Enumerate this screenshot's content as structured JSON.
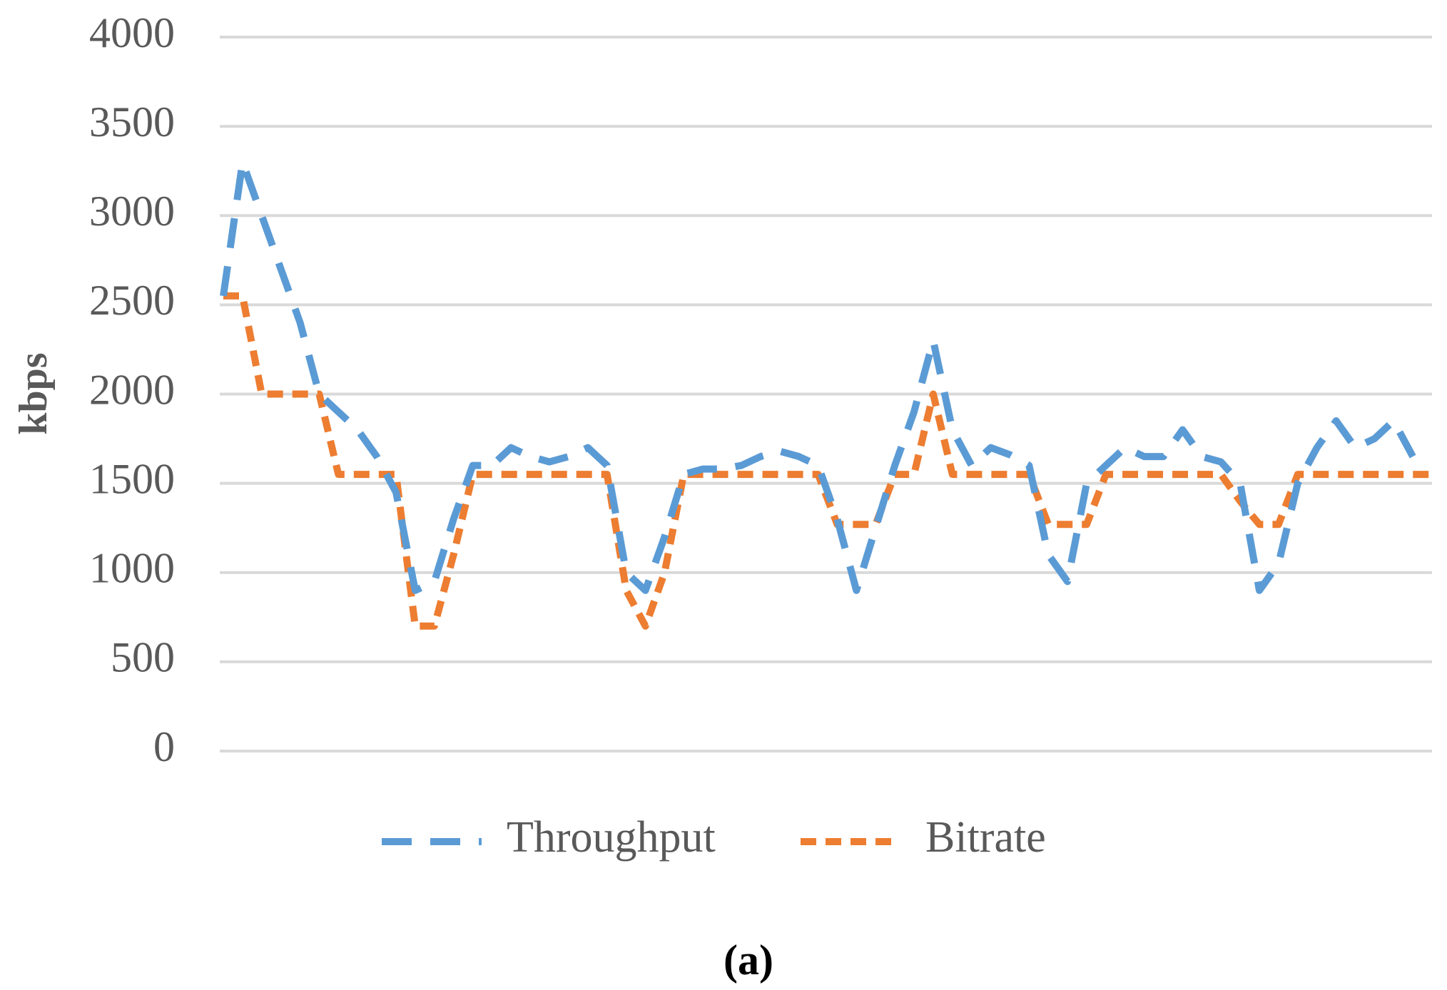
{
  "chart_data": {
    "type": "line",
    "ylabel": "kbps",
    "caption": "(a)",
    "ylim": [
      0,
      4000
    ],
    "yticks": [
      0,
      500,
      1000,
      1500,
      2000,
      2500,
      3000,
      3500,
      4000
    ],
    "grid": true,
    "legend": "bottom",
    "series": [
      {
        "name": "Throughput",
        "color": "#5b9bd5",
        "dash": "long",
        "values": [
          2550,
          3300,
          3000,
          2700,
          2400,
          2000,
          1900,
          1800,
          1650,
          1450,
          900,
          950,
          1300,
          1600,
          1600,
          1700,
          1650,
          1620,
          1650,
          1700,
          1600,
          1000,
          900,
          1200,
          1550,
          1580,
          1580,
          1600,
          1650,
          1680,
          1650,
          1600,
          1300,
          900,
          1250,
          1600,
          1900,
          2300,
          1800,
          1600,
          1700,
          1660,
          1600,
          1100,
          950,
          1500,
          1600,
          1700,
          1650,
          1650,
          1800,
          1650,
          1620,
          1500,
          900,
          1050,
          1500,
          1700,
          1850,
          1700,
          1750,
          1850,
          1650,
          null
        ]
      },
      {
        "name": "Bitrate",
        "color": "#ed7d31",
        "dash": "short",
        "values": [
          2550,
          2550,
          2000,
          2000,
          2000,
          2000,
          1550,
          1550,
          1550,
          1550,
          700,
          700,
          1100,
          1550,
          1550,
          1550,
          1550,
          1550,
          1550,
          1550,
          1550,
          900,
          700,
          1000,
          1550,
          1550,
          1550,
          1550,
          1550,
          1550,
          1550,
          1550,
          1270,
          1270,
          1270,
          1550,
          1550,
          2000,
          1550,
          1550,
          1550,
          1550,
          1550,
          1270,
          1270,
          1270,
          1550,
          1550,
          1550,
          1550,
          1550,
          1550,
          1550,
          1400,
          1270,
          1270,
          1550,
          1550,
          1550,
          1550,
          1550,
          1550,
          1550,
          1550
        ]
      }
    ]
  }
}
